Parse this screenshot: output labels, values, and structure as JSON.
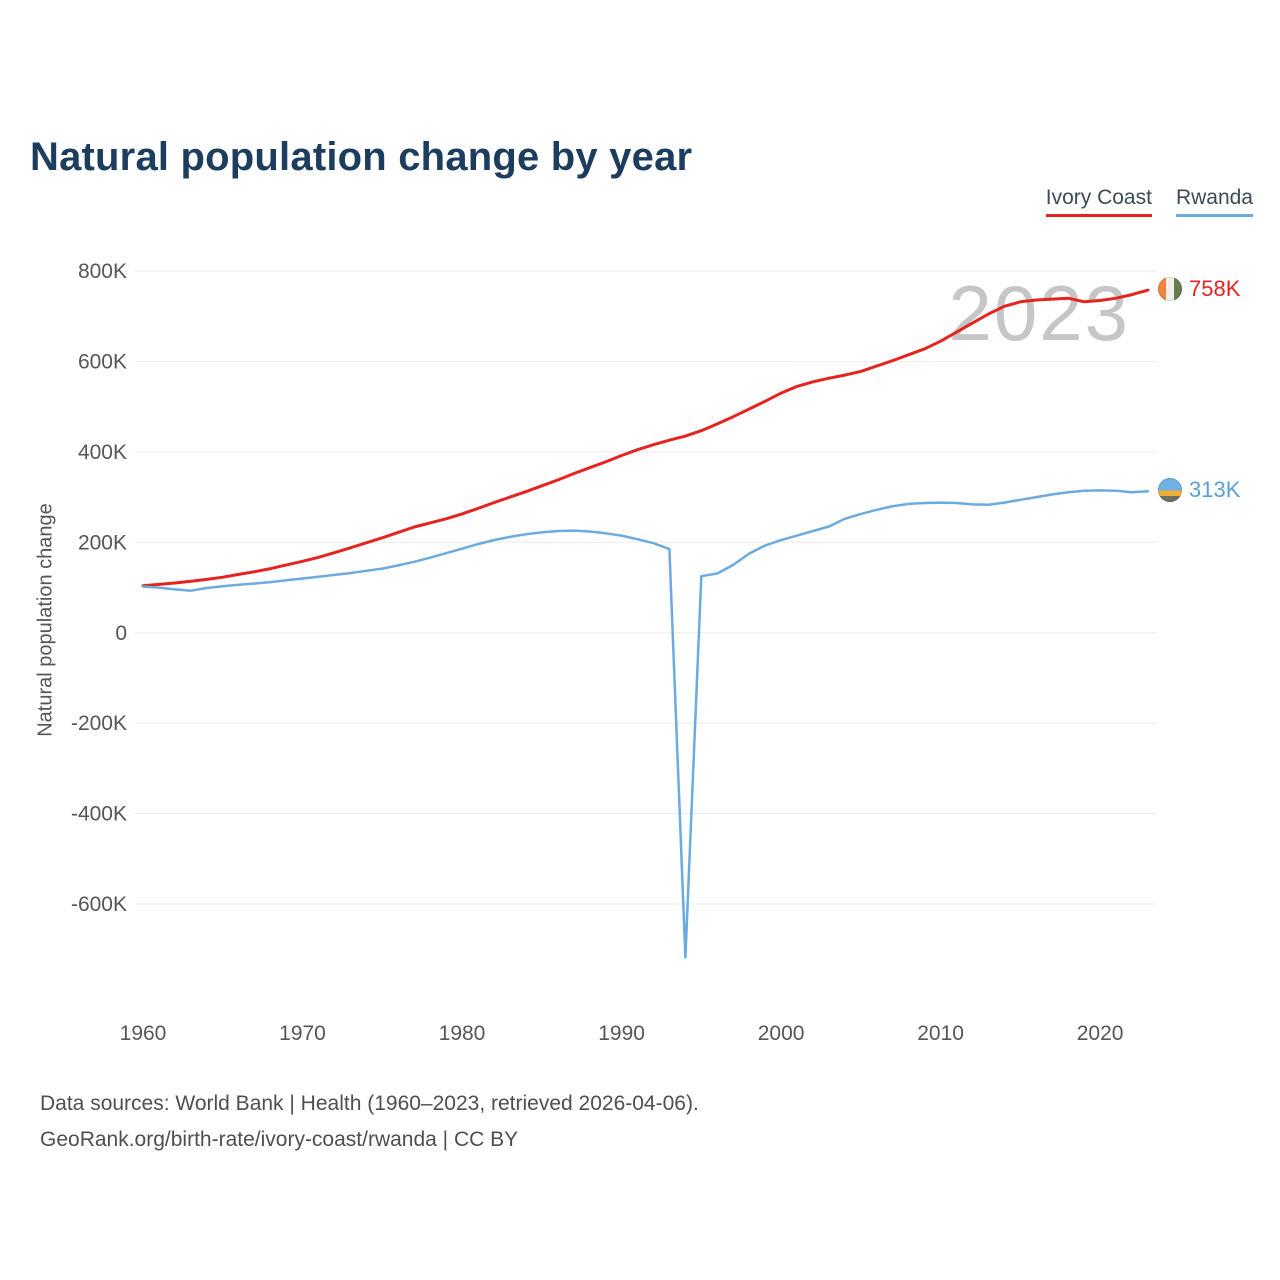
{
  "title": "Natural population change by year",
  "watermark": "2023",
  "legend": {
    "items": [
      {
        "label": "Ivory Coast",
        "color": "#e52420"
      },
      {
        "label": "Rwanda",
        "color": "#6cabdf"
      }
    ]
  },
  "end_labels": [
    {
      "series": "Ivory Coast",
      "value": "758K",
      "color": "#e52420"
    },
    {
      "series": "Rwanda",
      "value": "313K",
      "color": "#5b9fd6"
    }
  ],
  "y_axis_title": "Natural population change",
  "footer": {
    "line1": "Data sources: World Bank | Health (1960–2023, retrieved 2026-04-06).",
    "line2": "GeoRank.org/birth-rate/ivory-coast/rwanda | CC BY"
  },
  "chart_data": {
    "type": "line",
    "title": "Natural population change by year",
    "xlabel": "",
    "ylabel": "Natural population change",
    "xlim": [
      1960,
      2023
    ],
    "ylim": [
      -830000,
      840000
    ],
    "x_ticks": [
      1960,
      1970,
      1980,
      1990,
      2000,
      2010,
      2020
    ],
    "y_ticks": [
      800000,
      600000,
      400000,
      200000,
      0,
      -200000,
      -400000,
      -600000
    ],
    "grid": "horizontal",
    "legend_position": "top-right",
    "x": [
      1960,
      1961,
      1962,
      1963,
      1964,
      1965,
      1966,
      1967,
      1968,
      1969,
      1970,
      1971,
      1972,
      1973,
      1974,
      1975,
      1976,
      1977,
      1978,
      1979,
      1980,
      1981,
      1982,
      1983,
      1984,
      1985,
      1986,
      1987,
      1988,
      1989,
      1990,
      1991,
      1992,
      1993,
      1994,
      1995,
      1996,
      1997,
      1998,
      1999,
      2000,
      2001,
      2002,
      2003,
      2004,
      2005,
      2006,
      2007,
      2008,
      2009,
      2010,
      2011,
      2012,
      2013,
      2014,
      2015,
      2016,
      2017,
      2018,
      2019,
      2020,
      2021,
      2022,
      2023
    ],
    "series": [
      {
        "name": "Ivory Coast",
        "color": "#e52420",
        "values": [
          104000,
          107000,
          110000,
          114000,
          118000,
          123000,
          129000,
          135000,
          142000,
          150000,
          158000,
          167000,
          177000,
          188000,
          199000,
          210000,
          222000,
          234000,
          243000,
          252000,
          263000,
          275000,
          288000,
          300000,
          312000,
          325000,
          338000,
          352000,
          365000,
          378000,
          392000,
          405000,
          416000,
          426000,
          435000,
          447000,
          462000,
          478000,
          495000,
          512000,
          530000,
          545000,
          555000,
          563000,
          570000,
          578000,
          590000,
          602000,
          615000,
          628000,
          645000,
          665000,
          685000,
          705000,
          722000,
          732000,
          736000,
          738000,
          740000,
          732000,
          735000,
          740000,
          748000,
          758000
        ]
      },
      {
        "name": "Rwanda",
        "color": "#6cabdf",
        "values": [
          102000,
          100000,
          96000,
          93000,
          99000,
          103000,
          106000,
          109000,
          112000,
          116000,
          120000,
          124000,
          128000,
          132000,
          137000,
          142000,
          149000,
          157000,
          166000,
          176000,
          186000,
          196000,
          205000,
          212000,
          218000,
          222000,
          225000,
          226000,
          224000,
          220000,
          215000,
          207000,
          198000,
          185000,
          -718000,
          125000,
          131000,
          150000,
          175000,
          193000,
          205000,
          215000,
          225000,
          235000,
          252000,
          263000,
          272000,
          280000,
          285000,
          287000,
          288000,
          287000,
          284000,
          283000,
          288000,
          294000,
          300000,
          306000,
          311000,
          314000,
          315000,
          314000,
          311000,
          313000
        ]
      }
    ]
  }
}
